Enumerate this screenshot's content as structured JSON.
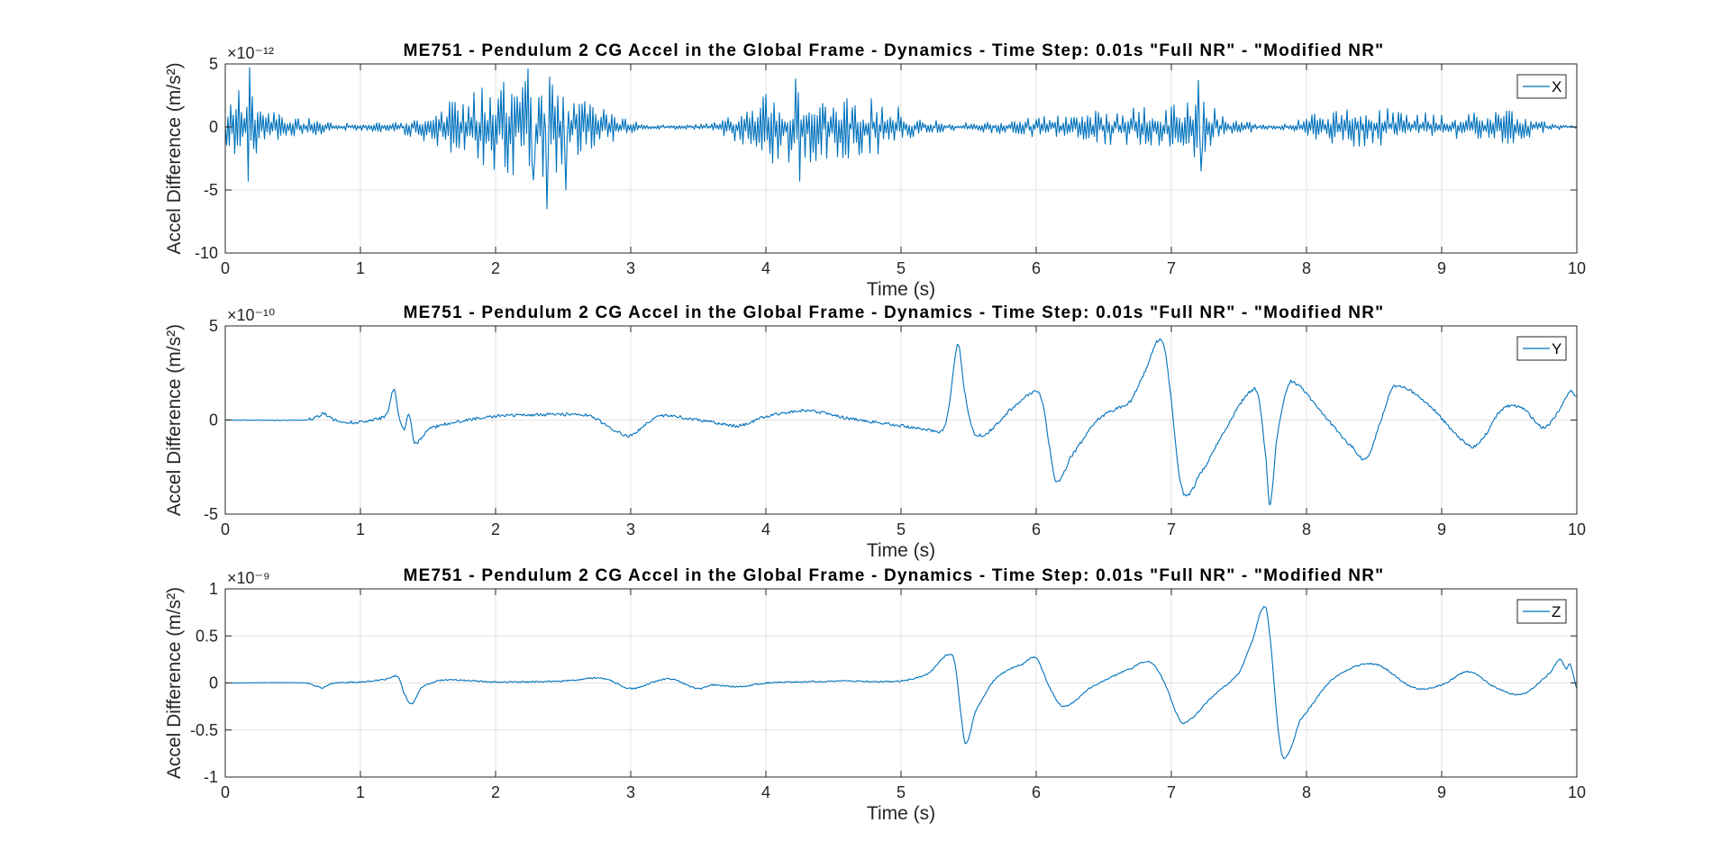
{
  "chart_data": [
    {
      "type": "line",
      "title": "ME751 - Pendulum 2 CG Accel in the Global Frame - Dynamics - Time Step: 0.01s \"Full NR\" - \"Modified NR\"",
      "xlabel": "Time (s)",
      "ylabel": "Accel Difference (m/s²)",
      "exponent": "×10⁻¹²",
      "xlim": [
        0,
        10
      ],
      "ylim": [
        -10,
        5
      ],
      "xticks": [
        "0",
        "1",
        "2",
        "3",
        "4",
        "5",
        "6",
        "7",
        "8",
        "9",
        "10"
      ],
      "yticks": [
        "-10",
        "-5",
        "0",
        "5"
      ],
      "grid": true,
      "legend_position": "top-right",
      "series": [
        {
          "name": "X",
          "color": "#0072BD",
          "signal": "noise",
          "envelope_x": [
            0,
            0.05,
            0.15,
            0.3,
            0.5,
            0.8,
            1.0,
            1.3,
            1.5,
            1.8,
            2.0,
            2.2,
            2.4,
            2.6,
            2.9,
            3.1,
            3.5,
            3.7,
            3.9,
            4.1,
            4.3,
            4.6,
            4.9,
            5.1,
            5.4,
            5.7,
            6.0,
            6.3,
            6.6,
            6.9,
            7.2,
            7.4,
            7.7,
            7.9,
            8.1,
            8.3,
            8.5,
            8.7,
            9.0,
            9.3,
            9.5,
            9.6,
            9.8,
            10.0
          ],
          "envelope": [
            2.2,
            2.8,
            3.0,
            1.5,
            0.8,
            0.5,
            0.3,
            0.5,
            1.5,
            2.6,
            3.8,
            3.8,
            4.0,
            2.5,
            1.0,
            0.2,
            0.2,
            0.8,
            2.0,
            3.2,
            2.9,
            2.5,
            2.2,
            0.8,
            0.3,
            0.5,
            0.8,
            1.1,
            1.5,
            1.8,
            2.5,
            0.8,
            0.2,
            0.4,
            1.2,
            1.6,
            1.6,
            1.4,
            1.1,
            1.2,
            1.4,
            1.0,
            0.3,
            0.1
          ],
          "spikes": [
            [
              0.18,
              4.7
            ],
            [
              0.17,
              -4.3
            ],
            [
              2.24,
              4.6
            ],
            [
              2.28,
              -4.2
            ],
            [
              2.38,
              -6.5
            ],
            [
              2.52,
              -5.0
            ],
            [
              4.25,
              -4.3
            ],
            [
              4.22,
              3.8
            ],
            [
              7.2,
              3.7
            ],
            [
              7.22,
              -3.5
            ]
          ]
        }
      ]
    },
    {
      "type": "line",
      "title": "ME751 - Pendulum 2 CG Accel in the Global Frame - Dynamics - Time Step: 0.01s \"Full NR\" - \"Modified NR\"",
      "xlabel": "Time (s)",
      "ylabel": "Accel Difference (m/s²)",
      "exponent": "×10⁻¹⁰",
      "xlim": [
        0,
        10
      ],
      "ylim": [
        -5,
        5
      ],
      "xticks": [
        "0",
        "1",
        "2",
        "3",
        "4",
        "5",
        "6",
        "7",
        "8",
        "9",
        "10"
      ],
      "yticks": [
        "-5",
        "0",
        "5"
      ],
      "grid": true,
      "legend_position": "top-right",
      "series": [
        {
          "name": "Y",
          "color": "#0072BD",
          "signal": "smooth",
          "noise_amp": 0.08,
          "x": [
            0,
            0.6,
            0.7,
            0.72,
            0.78,
            0.85,
            1.0,
            1.15,
            1.2,
            1.25,
            1.28,
            1.32,
            1.36,
            1.4,
            1.5,
            1.7,
            2.0,
            2.5,
            2.7,
            2.9,
            3.0,
            3.2,
            3.5,
            3.8,
            4.0,
            4.3,
            4.6,
            5.0,
            5.2,
            5.3,
            5.35,
            5.42,
            5.47,
            5.53,
            5.58,
            5.65,
            5.8,
            6.0,
            6.05,
            6.1,
            6.15,
            6.25,
            6.45,
            6.7,
            6.8,
            6.9,
            6.95,
            7.0,
            7.05,
            7.1,
            7.2,
            7.4,
            7.6,
            7.65,
            7.7,
            7.73,
            7.78,
            7.85,
            7.9,
            8.1,
            8.35,
            8.45,
            8.55,
            8.65,
            8.9,
            9.2,
            9.3,
            9.45,
            9.6,
            9.75,
            9.85,
            9.95,
            10.0
          ],
          "y": [
            0,
            0,
            0.2,
            0.4,
            0.1,
            -0.1,
            -0.1,
            0.1,
            0.4,
            1.7,
            0.4,
            -0.5,
            0.3,
            -1.2,
            -0.5,
            -0.1,
            0.2,
            0.3,
            0.2,
            -0.6,
            -0.8,
            0.2,
            0.0,
            -0.3,
            0.2,
            0.5,
            0.1,
            -0.3,
            -0.5,
            -0.6,
            0.5,
            4.0,
            1.5,
            -0.5,
            -0.8,
            -0.6,
            0.5,
            1.5,
            0.8,
            -1.5,
            -3.3,
            -2.0,
            0.0,
            1.0,
            2.5,
            4.2,
            3.8,
            1.0,
            -2.5,
            -4.0,
            -3.0,
            -0.5,
            1.6,
            1.0,
            -2.0,
            -4.5,
            -1.0,
            1.5,
            2.0,
            0.5,
            -1.5,
            -2.0,
            0.0,
            1.8,
            0.8,
            -1.3,
            -1.0,
            0.6,
            0.6,
            -0.4,
            0.3,
            1.5,
            1.2
          ]
        }
      ]
    },
    {
      "type": "line",
      "title": "ME751 - Pendulum 2 CG Accel in the Global Frame - Dynamics - Time Step: 0.01s \"Full NR\" - \"Modified NR\"",
      "xlabel": "Time (s)",
      "ylabel": "Accel Difference (m/s²)",
      "exponent": "×10⁻⁹",
      "xlim": [
        0,
        10
      ],
      "ylim": [
        -1,
        1
      ],
      "xticks": [
        "0",
        "1",
        "2",
        "3",
        "4",
        "5",
        "6",
        "7",
        "8",
        "9",
        "10"
      ],
      "yticks": [
        "-1",
        "-0.5",
        "0",
        "0.5",
        "1"
      ],
      "grid": true,
      "legend_position": "top-right",
      "series": [
        {
          "name": "Z",
          "color": "#0072BD",
          "signal": "smooth",
          "noise_amp": 0.008,
          "x": [
            0,
            0.6,
            0.72,
            0.8,
            1.0,
            1.2,
            1.28,
            1.32,
            1.38,
            1.45,
            1.6,
            2.0,
            2.5,
            2.8,
            3.0,
            3.2,
            3.3,
            3.5,
            3.6,
            3.8,
            4.0,
            4.5,
            5.0,
            5.2,
            5.35,
            5.4,
            5.45,
            5.48,
            5.55,
            5.7,
            5.9,
            6.0,
            6.1,
            6.2,
            6.4,
            6.7,
            6.85,
            6.95,
            7.05,
            7.1,
            7.3,
            7.5,
            7.6,
            7.68,
            7.72,
            7.8,
            7.85,
            7.95,
            8.2,
            8.5,
            8.8,
            9.0,
            9.2,
            9.4,
            9.6,
            9.8,
            9.88,
            9.92,
            9.95,
            10.0
          ],
          "y": [
            0,
            0,
            -0.05,
            0.0,
            0.01,
            0.04,
            0.07,
            -0.1,
            -0.22,
            -0.05,
            0.03,
            0.01,
            0.02,
            0.05,
            -0.06,
            0.02,
            0.04,
            -0.06,
            -0.02,
            -0.04,
            0.0,
            0.02,
            0.02,
            0.1,
            0.3,
            0.2,
            -0.4,
            -0.65,
            -0.3,
            0.05,
            0.2,
            0.26,
            -0.05,
            -0.25,
            -0.05,
            0.15,
            0.22,
            0.0,
            -0.35,
            -0.42,
            -0.15,
            0.1,
            0.45,
            0.8,
            0.6,
            -0.6,
            -0.78,
            -0.4,
            0.05,
            0.2,
            -0.05,
            -0.02,
            0.12,
            -0.05,
            -0.12,
            0.1,
            0.25,
            0.15,
            0.2,
            -0.05
          ]
        }
      ]
    }
  ]
}
